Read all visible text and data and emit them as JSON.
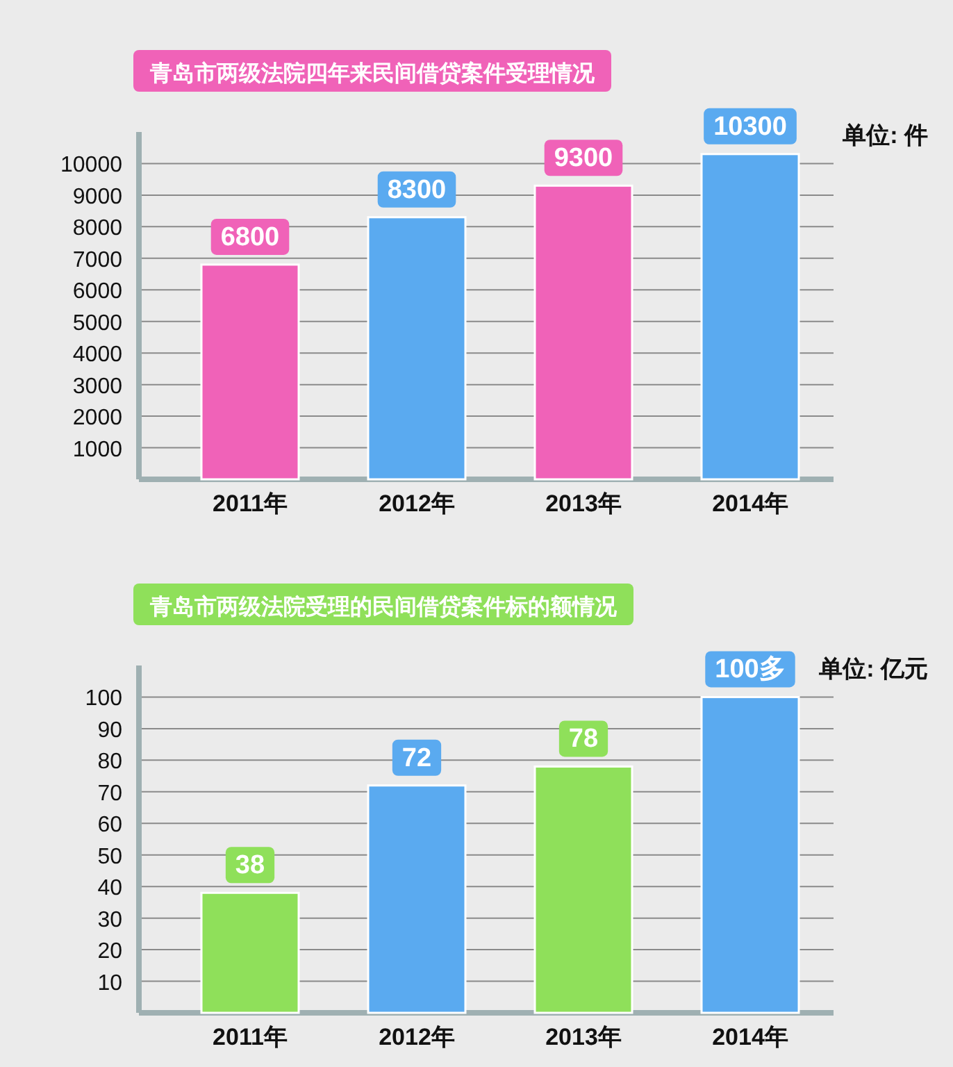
{
  "chart_data": [
    {
      "type": "bar",
      "title": "青岛市两级法院四年来民间借贷案件受理情况",
      "categories": [
        "2011年",
        "2012年",
        "2013年",
        "2014年"
      ],
      "values": [
        6800,
        8300,
        9300,
        10300
      ],
      "colors": [
        "#f062b8",
        "#5aaaf0",
        "#f062b8",
        "#5aaaf0"
      ],
      "ylim": [
        0,
        11000
      ],
      "yticks": [
        1000,
        2000,
        3000,
        4000,
        5000,
        6000,
        7000,
        8000,
        9000,
        10000
      ],
      "grid": "y",
      "data_labels": true,
      "annotations": [
        "单位: 件"
      ]
    },
    {
      "type": "bar",
      "title": "青岛市两级法院受理的民间借贷案件标的额情况",
      "categories": [
        "2011年",
        "2012年",
        "2013年",
        "2014年"
      ],
      "values": [
        38,
        72,
        78,
        100
      ],
      "value_labels": [
        "38",
        "72",
        "78",
        "100多"
      ],
      "colors": [
        "#8fe05a",
        "#5aaaf0",
        "#8fe05a",
        "#5aaaf0"
      ],
      "ylim": [
        0,
        110
      ],
      "yticks": [
        10,
        20,
        30,
        40,
        50,
        60,
        70,
        80,
        90,
        100
      ],
      "grid": "y",
      "annotations": [
        "单位: 亿元"
      ]
    }
  ]
}
